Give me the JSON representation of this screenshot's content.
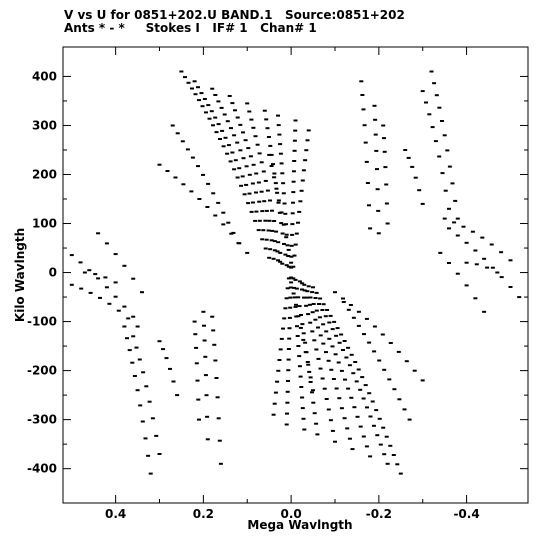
{
  "header": {
    "line1": "V vs U for 0851+202.U BAND.1   Source:0851+202",
    "line2": "Ants * - *     Stokes I   IF# 1   Chan# 1"
  },
  "chart_data": {
    "type": "scatter",
    "title": "V vs U for 0851+202.U BAND.1   Source:0851+202",
    "subtitle": "Ants * - *     Stokes I   IF# 1   Chan# 1",
    "xlabel": "Mega Wavlngth",
    "ylabel": "Kilo Wavlngth",
    "xlim": [
      0.52,
      -0.54
    ],
    "ylim": [
      -470,
      460
    ],
    "x_ticks": [
      0.4,
      0.2,
      0.0,
      -0.2,
      -0.4
    ],
    "x_tick_labels": [
      "0.4",
      "0.2",
      "0.0",
      "-0.2",
      "-0.4"
    ],
    "y_ticks": [
      400,
      300,
      200,
      100,
      0,
      -100,
      -200,
      -300,
      -400
    ],
    "y_tick_labels": [
      "400",
      "300",
      "200",
      "100",
      "0",
      "-100",
      "-200",
      "-300",
      "-400"
    ],
    "grid": false,
    "marker_color": "#000000",
    "tracks": [
      {
        "name": "",
        "start": [
          0.25,
          410
        ],
        "end": [
          0.05,
          30
        ],
        "bow": 30,
        "n": 26
      },
      {
        "name": "",
        "start": [
          0.22,
          390
        ],
        "end": [
          0.04,
          28
        ],
        "bow": 28,
        "n": 24
      },
      {
        "name": "",
        "start": [
          0.18,
          375
        ],
        "end": [
          0.03,
          25
        ],
        "bow": 25,
        "n": 22
      },
      {
        "name": "",
        "start": [
          0.14,
          360
        ],
        "end": [
          0.025,
          22
        ],
        "bow": 20,
        "n": 20
      },
      {
        "name": "",
        "start": [
          0.1,
          345
        ],
        "end": [
          0.02,
          18
        ],
        "bow": 15,
        "n": 18
      },
      {
        "name": "",
        "start": [
          0.06,
          330
        ],
        "end": [
          0.01,
          15
        ],
        "bow": 10,
        "n": 17
      },
      {
        "name": "",
        "start": [
          0.03,
          320
        ],
        "end": [
          0.005,
          12
        ],
        "bow": 6,
        "n": 16
      },
      {
        "name": "",
        "start": [
          -0.01,
          310
        ],
        "end": [
          0.0,
          10
        ],
        "bow": 4,
        "n": 15
      },
      {
        "name": "",
        "start": [
          -0.04,
          290
        ],
        "end": [
          -0.005,
          12
        ],
        "bow": 5,
        "n": 14
      },
      {
        "name": "",
        "start": [
          0.27,
          300
        ],
        "end": [
          0.12,
          60
        ],
        "bow": 10,
        "n": 14
      },
      {
        "name": "",
        "start": [
          0.3,
          220
        ],
        "end": [
          0.1,
          40
        ],
        "bow": 12,
        "n": 12
      },
      {
        "name": "",
        "start": [
          0.05,
          240
        ],
        "end": [
          0.0,
          20
        ],
        "bow": 5,
        "n": 10
      },
      {
        "name": "",
        "start": [
          -0.16,
          390
        ],
        "end": [
          -0.18,
          90
        ],
        "bow": 25,
        "n": 9
      },
      {
        "name": "",
        "start": [
          -0.19,
          340
        ],
        "end": [
          -0.2,
          80
        ],
        "bow": 20,
        "n": 8
      },
      {
        "name": "",
        "start": [
          -0.21,
          300
        ],
        "end": [
          -0.22,
          100
        ],
        "bow": 15,
        "n": 7
      },
      {
        "name": "",
        "start": [
          -0.32,
          410
        ],
        "end": [
          -0.38,
          110
        ],
        "bow": 20,
        "n": 11
      },
      {
        "name": "",
        "start": [
          -0.3,
          370
        ],
        "end": [
          -0.36,
          130
        ],
        "bow": 18,
        "n": 9
      },
      {
        "name": "",
        "start": [
          -0.26,
          250
        ],
        "end": [
          -0.3,
          140
        ],
        "bow": 10,
        "n": 6
      },
      {
        "name": "",
        "start": [
          -0.35,
          110
        ],
        "end": [
          -0.5,
          25
        ],
        "bow": 10,
        "n": 8
      },
      {
        "name": "",
        "start": [
          -0.36,
          90
        ],
        "end": [
          -0.52,
          -50
        ],
        "bow": 8,
        "n": 9
      },
      {
        "name": "",
        "start": [
          -0.34,
          40
        ],
        "end": [
          -0.44,
          -80
        ],
        "bow": 6,
        "n": 6
      },
      {
        "name": "",
        "start": [
          -0.4,
          20
        ],
        "end": [
          -0.47,
          0
        ],
        "bow": 4,
        "n": 4
      },
      {
        "name": "",
        "start": [
          -0.25,
          -410
        ],
        "end": [
          -0.05,
          -30
        ],
        "bow": 30,
        "n": 26
      },
      {
        "name": "",
        "start": [
          -0.22,
          -390
        ],
        "end": [
          -0.04,
          -28
        ],
        "bow": 28,
        "n": 24
      },
      {
        "name": "",
        "start": [
          -0.18,
          -375
        ],
        "end": [
          -0.03,
          -25
        ],
        "bow": 25,
        "n": 22
      },
      {
        "name": "",
        "start": [
          -0.14,
          -360
        ],
        "end": [
          -0.025,
          -22
        ],
        "bow": 20,
        "n": 20
      },
      {
        "name": "",
        "start": [
          -0.1,
          -345
        ],
        "end": [
          -0.02,
          -18
        ],
        "bow": 15,
        "n": 18
      },
      {
        "name": "",
        "start": [
          -0.06,
          -330
        ],
        "end": [
          -0.01,
          -15
        ],
        "bow": 10,
        "n": 17
      },
      {
        "name": "",
        "start": [
          -0.03,
          -320
        ],
        "end": [
          -0.005,
          -12
        ],
        "bow": 6,
        "n": 16
      },
      {
        "name": "",
        "start": [
          0.01,
          -310
        ],
        "end": [
          0.0,
          -10
        ],
        "bow": 4,
        "n": 15
      },
      {
        "name": "",
        "start": [
          0.04,
          -290
        ],
        "end": [
          0.005,
          -12
        ],
        "bow": 5,
        "n": 14
      },
      {
        "name": "",
        "start": [
          -0.27,
          -300
        ],
        "end": [
          -0.12,
          -60
        ],
        "bow": 10,
        "n": 14
      },
      {
        "name": "",
        "start": [
          -0.3,
          -220
        ],
        "end": [
          -0.1,
          -40
        ],
        "bow": 12,
        "n": 12
      },
      {
        "name": "",
        "start": [
          -0.05,
          -240
        ],
        "end": [
          0.0,
          -20
        ],
        "bow": 5,
        "n": 10
      },
      {
        "name": "",
        "start": [
          0.16,
          -390
        ],
        "end": [
          0.18,
          -90
        ],
        "bow": 25,
        "n": 9
      },
      {
        "name": "",
        "start": [
          0.19,
          -340
        ],
        "end": [
          0.2,
          -80
        ],
        "bow": 20,
        "n": 8
      },
      {
        "name": "",
        "start": [
          0.21,
          -300
        ],
        "end": [
          0.22,
          -100
        ],
        "bow": 15,
        "n": 7
      },
      {
        "name": "",
        "start": [
          0.32,
          -410
        ],
        "end": [
          0.38,
          -110
        ],
        "bow": 20,
        "n": 11
      },
      {
        "name": "",
        "start": [
          0.3,
          -370
        ],
        "end": [
          0.36,
          -130
        ],
        "bow": 18,
        "n": 9
      },
      {
        "name": "",
        "start": [
          0.26,
          -250
        ],
        "end": [
          0.3,
          -140
        ],
        "bow": 10,
        "n": 6
      },
      {
        "name": "",
        "start": [
          0.35,
          -110
        ],
        "end": [
          0.5,
          -25
        ],
        "bow": 10,
        "n": 8
      },
      {
        "name": "",
        "start": [
          0.36,
          -90
        ],
        "end": [
          0.52,
          50
        ],
        "bow": 8,
        "n": 9
      },
      {
        "name": "",
        "start": [
          0.34,
          -40
        ],
        "end": [
          0.44,
          80
        ],
        "bow": 6,
        "n": 6
      },
      {
        "name": "",
        "start": [
          0.4,
          -20
        ],
        "end": [
          0.47,
          0
        ],
        "bow": 4,
        "n": 4
      }
    ]
  }
}
